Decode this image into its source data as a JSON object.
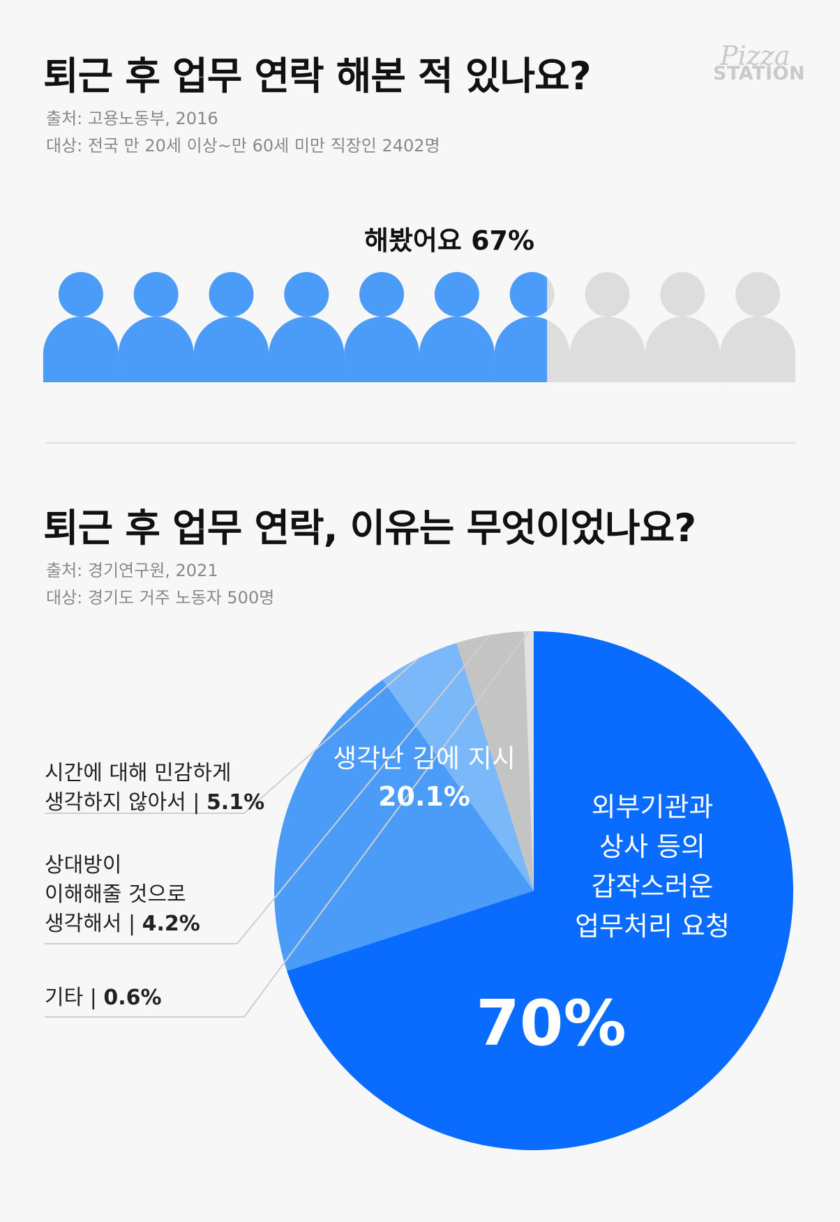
{
  "brand": {
    "top": "Pizza",
    "bottom": "STATION"
  },
  "section1": {
    "title": "퇴근 후 업무 연락 해본 적 있나요?",
    "source": "출처: 고용노동부, 2016",
    "target": "대상: 전국 만 20세 이상~만 60세 미만 직장인 2402명",
    "label_text": "해봤어요",
    "label_value": "67%"
  },
  "section2": {
    "title": "퇴근 후 업무 연락, 이유는 무엇이었나요?",
    "source": "출처: 경기연구원, 2021",
    "target": "대상: 경기도 거주 노동자 500명"
  },
  "colors": {
    "people_active": "#4a9cf8",
    "people_inactive": "#dddddd",
    "slice_main": "#0a6cff",
    "slice_second": "#4a9cf8",
    "slice_third": "#7bb8fa",
    "slice_fourth": "#c4c4c4",
    "slice_fifth": "#e2e2e2",
    "label_blue": "#1a7bf0"
  },
  "chart_data": [
    {
      "type": "pictogram",
      "total_icons": 10,
      "series": [
        {
          "name": "해봤어요",
          "value": 67,
          "color": "#4a9cf8"
        },
        {
          "name": "",
          "value": 33,
          "color": "#dddddd"
        }
      ]
    },
    {
      "type": "pie",
      "slices": [
        {
          "label": "외부기관과 상사 등의 갑작스러운 업무처리 요청",
          "label_lines": [
            "외부기관과",
            "상사 등의",
            "갑작스러운",
            "업무처리 요청"
          ],
          "value": 70,
          "value_label": "70%",
          "color": "#0a6cff"
        },
        {
          "label": "생각난 김에 지시",
          "value": 20.1,
          "value_label": "20.1%",
          "color": "#4a9cf8"
        },
        {
          "label": "시간에 대해 민감하게 생각하지 않아서",
          "callout_lines": [
            "시간에 대해 민감하게",
            "생각하지 않아서"
          ],
          "value": 5.1,
          "value_label": "5.1%",
          "color": "#7bb8fa"
        },
        {
          "label": "상대방이 이해해줄 것으로 생각해서",
          "callout_lines": [
            "상대방이",
            "이해해줄 것으로",
            "생각해서"
          ],
          "value": 4.2,
          "value_label": "4.2%",
          "color": "#c4c4c4"
        },
        {
          "label": "기타",
          "callout_lines": [
            "기타"
          ],
          "value": 0.6,
          "value_label": "0.6%",
          "color": "#e2e2e2"
        }
      ]
    }
  ]
}
